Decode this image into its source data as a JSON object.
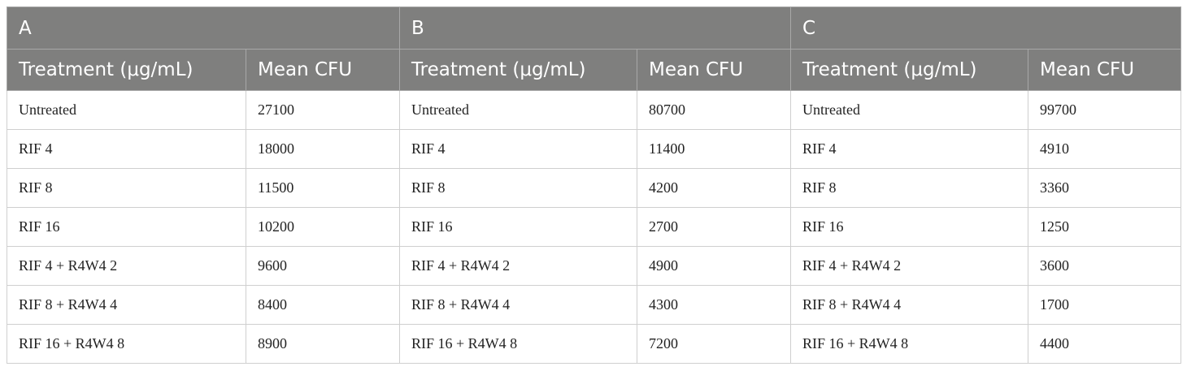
{
  "table": {
    "groups": [
      "A",
      "B",
      "C"
    ],
    "headers": [
      "Treatment (μg/mL)",
      "Mean CFU",
      "Treatment (μg/mL)",
      "Mean CFU",
      "Treatment (μg/mL)",
      "Mean CFU"
    ],
    "rows": [
      [
        "Untreated",
        27100,
        "Untreated",
        80700,
        "Untreated",
        99700
      ],
      [
        "RIF 4",
        18000,
        "RIF 4",
        11400,
        "RIF 4",
        4910
      ],
      [
        "RIF 8",
        11500,
        "RIF 8",
        4200,
        "RIF 8",
        3360
      ],
      [
        "RIF 16",
        10200,
        "RIF 16",
        2700,
        "RIF 16",
        1250
      ],
      [
        "RIF 4 + R4W4 2",
        9600,
        "RIF 4 + R4W4 2",
        4900,
        "RIF 4 + R4W4 2",
        3600
      ],
      [
        "RIF 8 + R4W4 4",
        8400,
        "RIF 8 + R4W4 4",
        4300,
        "RIF 8 + R4W4 4",
        1700
      ],
      [
        "RIF 16 + R4W4 8",
        8900,
        "RIF 16 + R4W4 8",
        7200,
        "RIF 16 + R4W4 8",
        4400
      ]
    ]
  }
}
